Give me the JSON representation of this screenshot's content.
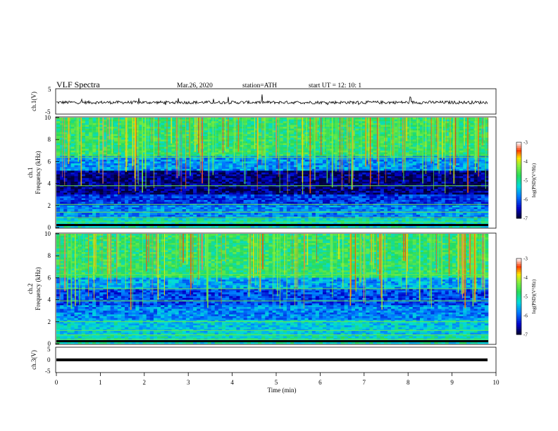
{
  "header": {
    "title": "VLF  Spectra",
    "date": "Mar.26, 2020",
    "station": "station=ATH",
    "start": "start  UT  =    12: 10: 1"
  },
  "chart_data": [
    {
      "type": "line",
      "id": "ch1-waveform",
      "ylabel": "ch.1(V)",
      "ylim": [
        -5,
        5
      ],
      "yticks": [
        "5",
        "-5"
      ],
      "xlim": [
        0,
        10
      ],
      "series_note": "noisy waveform centred near -0.2 V with spikes, 0 to 9.8 min"
    },
    {
      "type": "heatmap",
      "id": "ch1-spectrogram",
      "ylabel": "ch.1\nFrequency (kHz)",
      "ylabel_top": "ch.1",
      "ylabel_bottom": "Frequency (kHz)",
      "ylim": [
        0,
        10
      ],
      "yticks": [
        "0",
        "2",
        "4",
        "6",
        "8",
        "10"
      ],
      "xlim": [
        0,
        9.8
      ],
      "colorbar": {
        "label": "log(PSD)(V²/Hz)",
        "range": [
          -7,
          -3
        ],
        "ticks": [
          "-3",
          "-4",
          "-5",
          "-6",
          "-7"
        ]
      }
    },
    {
      "type": "heatmap",
      "id": "ch2-spectrogram",
      "ylabel_top": "ch.2",
      "ylabel_bottom": "Frequency (kHz)",
      "ylim": [
        0,
        10
      ],
      "yticks": [
        "0",
        "2",
        "4",
        "6",
        "8",
        "10"
      ],
      "xlim": [
        0,
        9.8
      ],
      "colorbar": {
        "label": "log(PSD)(V²/Hz)",
        "range": [
          -7,
          -3
        ],
        "ticks": [
          "-3",
          "-4",
          "-5",
          "-6",
          "-7"
        ]
      }
    },
    {
      "type": "line",
      "id": "ch3-waveform",
      "ylabel": "ch.3(V)",
      "ylim": [
        -5,
        5
      ],
      "yticks": [
        "5",
        "0",
        "-5"
      ],
      "xlim": [
        0,
        10
      ],
      "xlabel": "Time  (min)",
      "xticks": [
        "0",
        "1",
        "2",
        "3",
        "4",
        "5",
        "6",
        "7",
        "8",
        "9",
        "10"
      ],
      "series_note": "flat thick line near -2 V across 0 to 9.8 min"
    }
  ]
}
